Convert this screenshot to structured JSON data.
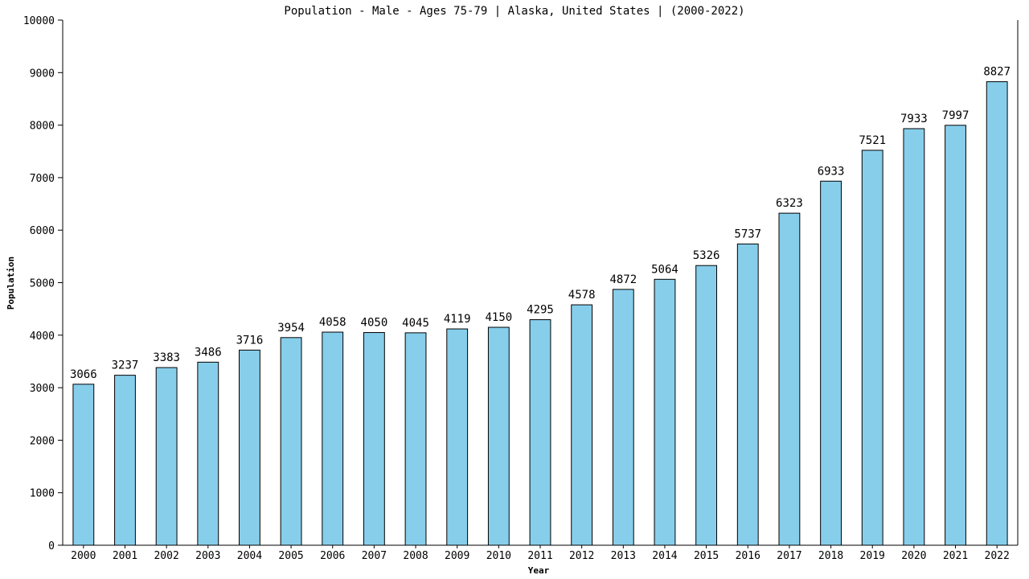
{
  "chart_data": {
    "type": "bar",
    "title": "Population - Male - Ages 75-79 | Alaska, United States |  (2000-2022)",
    "xlabel": "Year",
    "ylabel": "Population",
    "ylim": [
      0,
      10000
    ],
    "yticks": [
      0,
      1000,
      2000,
      3000,
      4000,
      5000,
      6000,
      7000,
      8000,
      9000,
      10000
    ],
    "grid": false,
    "bar_color": "#87ceeb",
    "categories": [
      "2000",
      "2001",
      "2002",
      "2003",
      "2004",
      "2005",
      "2006",
      "2007",
      "2008",
      "2009",
      "2010",
      "2011",
      "2012",
      "2013",
      "2014",
      "2015",
      "2016",
      "2017",
      "2018",
      "2019",
      "2020",
      "2021",
      "2022"
    ],
    "values": [
      3066,
      3237,
      3383,
      3486,
      3716,
      3954,
      4058,
      4050,
      4045,
      4119,
      4150,
      4295,
      4578,
      4872,
      5064,
      5326,
      5737,
      6323,
      6933,
      7521,
      7933,
      7997,
      8827
    ]
  }
}
